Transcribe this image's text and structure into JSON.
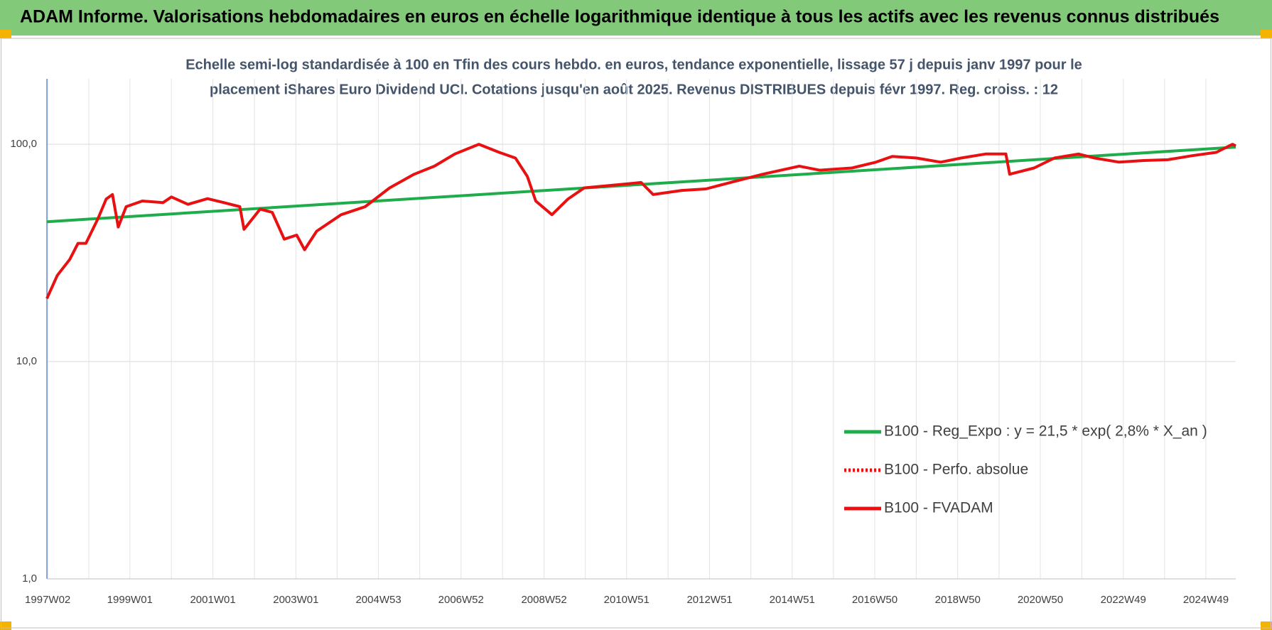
{
  "chart_data": {
    "type": "line",
    "title": "ADAM Informe. Valorisations hebdomadaires en euros en échelle logarithmique identique à tous les actifs avec les revenus connus distribués",
    "subtitle": [
      "Echelle semi-log standardisée à 100 en Tfin des cours hebdo. en euros, tendance exponentielle, lissage 57 j depuis janv 1997 pour le",
      "placement iShares Euro Dividend UCI. Cotations jusqu'en août 2025. Revenus DISTRIBUES depuis févr 1997. Reg. croiss. : 12"
    ],
    "log_y": true,
    "grid": true,
    "ylim": [
      1,
      200
    ],
    "yticks": [
      {
        "value": 1,
        "label": "1,0"
      },
      {
        "value": 10,
        "label": "10,0"
      },
      {
        "value": 100,
        "label": "100,0"
      }
    ],
    "xlim": [
      1997.0,
      2025.65
    ],
    "xticks": [
      {
        "value": 1997.02,
        "label": "1997W02"
      },
      {
        "value": 1999.0,
        "label": "1999W01"
      },
      {
        "value": 2001.0,
        "label": "2001W01"
      },
      {
        "value": 2003.0,
        "label": "2003W01"
      },
      {
        "value": 2004.99,
        "label": "2004W53"
      },
      {
        "value": 2006.98,
        "label": "2006W52"
      },
      {
        "value": 2008.98,
        "label": "2008W52"
      },
      {
        "value": 2010.97,
        "label": "2010W51"
      },
      {
        "value": 2012.97,
        "label": "2012W51"
      },
      {
        "value": 2014.96,
        "label": "2014W51"
      },
      {
        "value": 2016.95,
        "label": "2016W50"
      },
      {
        "value": 2018.95,
        "label": "2018W50"
      },
      {
        "value": 2020.94,
        "label": "2020W50"
      },
      {
        "value": 2022.94,
        "label": "2022W49"
      },
      {
        "value": 2024.93,
        "label": "2024W49"
      }
    ],
    "series": [
      {
        "name": "B100 - Reg_Expo : y = 21,5 * exp( 2,8% *  X_an )",
        "color": "#1fad4b",
        "style": "solid",
        "x": [
          1997.0,
          2025.65
        ],
        "values": [
          44,
          97
        ]
      },
      {
        "name": "B100 - Perfo. absolue",
        "color": "#e81010",
        "style": "dotted",
        "x": [
          1997.0,
          1997.25,
          1997.55,
          1997.75,
          1997.94,
          1998.23,
          1998.43,
          1998.58,
          1998.72,
          1998.91,
          1999.3,
          1999.8,
          2000.0,
          2000.4,
          2000.87,
          2001.26,
          2001.65,
          2001.75,
          2002.14,
          2002.43,
          2002.72,
          2003.02,
          2003.21,
          2003.5,
          2004.09,
          2004.67,
          2005.26,
          2005.85,
          2006.34,
          2006.83,
          2007.41,
          2007.9,
          2008.29,
          2008.58,
          2008.78,
          2009.17,
          2009.56,
          2009.95,
          2010.73,
          2011.32,
          2011.61,
          2012.3,
          2012.88,
          2013.47,
          2014.25,
          2015.13,
          2015.62,
          2016.4,
          2016.98,
          2017.37,
          2017.96,
          2018.54,
          2019.03,
          2019.62,
          2020.11,
          2020.2,
          2020.79,
          2021.28,
          2021.86,
          2022.25,
          2022.84,
          2023.43,
          2024.01,
          2024.6,
          2025.18,
          2025.57,
          2025.65
        ],
        "values": [
          19.5,
          24.9,
          29.5,
          35,
          35,
          45.4,
          56,
          58.7,
          41.6,
          51.6,
          54.8,
          53.9,
          57.2,
          52.9,
          56.2,
          53.9,
          51.6,
          40.6,
          50.3,
          48.6,
          36.6,
          38.2,
          32.7,
          39.8,
          47.4,
          51.6,
          63,
          72.8,
          79.3,
          90.2,
          100,
          91.8,
          86.4,
          71,
          54.8,
          47.4,
          56,
          63,
          65,
          66.7,
          58.7,
          61.3,
          62.3,
          66.7,
          72.8,
          79.3,
          76,
          77.8,
          82.7,
          87.9,
          86.4,
          82.7,
          86.4,
          90.2,
          90.2,
          72.8,
          77.8,
          86.4,
          90.2,
          86.4,
          82.7,
          84.2,
          84.9,
          88.6,
          91.8,
          100,
          98.3
        ]
      },
      {
        "name": "B100 - FVADAM",
        "color": "#e81010",
        "style": "solid",
        "x": [
          1997.0,
          1997.25,
          1997.55,
          1997.75,
          1997.94,
          1998.23,
          1998.43,
          1998.58,
          1998.72,
          1998.91,
          1999.3,
          1999.8,
          2000.0,
          2000.4,
          2000.87,
          2001.26,
          2001.65,
          2001.75,
          2002.14,
          2002.43,
          2002.72,
          2003.02,
          2003.21,
          2003.5,
          2004.09,
          2004.67,
          2005.26,
          2005.85,
          2006.34,
          2006.83,
          2007.41,
          2007.9,
          2008.29,
          2008.58,
          2008.78,
          2009.17,
          2009.56,
          2009.95,
          2010.73,
          2011.32,
          2011.61,
          2012.3,
          2012.88,
          2013.47,
          2014.25,
          2015.13,
          2015.62,
          2016.4,
          2016.98,
          2017.37,
          2017.96,
          2018.54,
          2019.03,
          2019.62,
          2020.11,
          2020.2,
          2020.79,
          2021.28,
          2021.86,
          2022.25,
          2022.84,
          2023.43,
          2024.01,
          2024.6,
          2025.18,
          2025.57,
          2025.65
        ],
        "values": [
          19.5,
          24.9,
          29.5,
          35,
          35,
          45.4,
          56,
          58.7,
          41.6,
          51.6,
          54.8,
          53.9,
          57.2,
          52.9,
          56.2,
          53.9,
          51.6,
          40.6,
          50.3,
          48.6,
          36.6,
          38.2,
          32.7,
          39.8,
          47.4,
          51.6,
          63,
          72.8,
          79.3,
          90.2,
          100,
          91.8,
          86.4,
          71,
          54.8,
          47.4,
          56,
          63,
          65,
          66.7,
          58.7,
          61.3,
          62.3,
          66.7,
          72.8,
          79.3,
          76,
          77.8,
          82.7,
          87.9,
          86.4,
          82.7,
          86.4,
          90.2,
          90.2,
          72.8,
          77.8,
          86.4,
          90.2,
          86.4,
          82.7,
          84.2,
          84.9,
          88.6,
          91.8,
          100,
          98.3
        ]
      }
    ]
  }
}
